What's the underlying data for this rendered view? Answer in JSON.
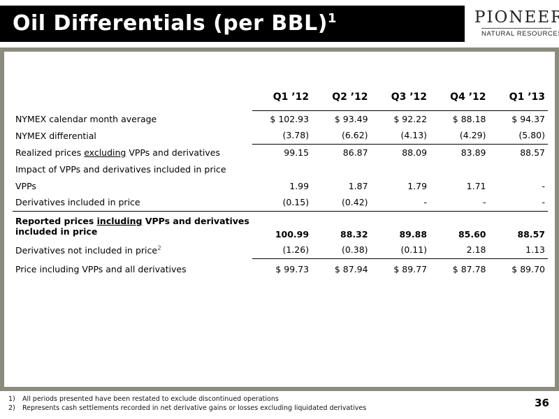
{
  "title": {
    "text": "Oil Differentials (per BBL)",
    "sup": "1"
  },
  "logo": {
    "word": "PIONEER",
    "sub": "NATURAL RESOURCES"
  },
  "table": {
    "columns": [
      "Q1 ’12",
      "Q2 ’12",
      "Q3 ’12",
      "Q4 ’12",
      "Q1 ’13"
    ],
    "rows": {
      "nymex_avg": {
        "label": "NYMEX calendar month average",
        "values": [
          "$ 102.93",
          "$ 93.49",
          "$ 92.22",
          "$ 88.18",
          "$ 94.37"
        ]
      },
      "nymex_diff": {
        "label": "NYMEX differential",
        "values": [
          "(3.78)",
          "(6.62)",
          "(4.13)",
          "(4.29)",
          "(5.80)"
        ]
      },
      "realized_excl": {
        "label_pre": "Realized prices ",
        "label_u": "excluding",
        "label_post": " VPPs and derivatives",
        "values": [
          "99.15",
          "86.87",
          "88.09",
          "83.89",
          "88.57"
        ]
      },
      "impact": {
        "label": "Impact of VPPs and derivatives included in price"
      },
      "vpps": {
        "label": "VPPs",
        "values": [
          "1.99",
          "1.87",
          "1.79",
          "1.71",
          "-"
        ]
      },
      "deriv_incl": {
        "label": "Derivatives included in price",
        "values": [
          "(0.15)",
          "(0.42)",
          "-",
          "-",
          "-"
        ]
      },
      "reported_incl": {
        "label_pre": "Reported prices ",
        "label_u": "including",
        "label_post": " VPPs and derivatives",
        "label_line2": "included in price",
        "values": [
          "100.99",
          "88.32",
          "89.88",
          "85.60",
          "88.57"
        ]
      },
      "deriv_not_incl": {
        "label": "Derivatives not included in price",
        "sup": "2",
        "values": [
          "(1.26)",
          "(0.38)",
          "(0.11)",
          "2.18",
          "1.13"
        ]
      },
      "price_all": {
        "label": "Price including VPPs and all derivatives",
        "values": [
          "$ 99.73",
          "$ 87.94",
          "$ 89.77",
          "$ 87.78",
          "$ 89.70"
        ]
      }
    }
  },
  "footnotes": [
    {
      "num": "1)",
      "text": "All periods presented have been restated to exclude discontinued operations"
    },
    {
      "num": "2)",
      "text": "Represents cash settlements recorded in net derivative gains or losses excluding liquidated derivatives"
    }
  ],
  "page_number": "36"
}
